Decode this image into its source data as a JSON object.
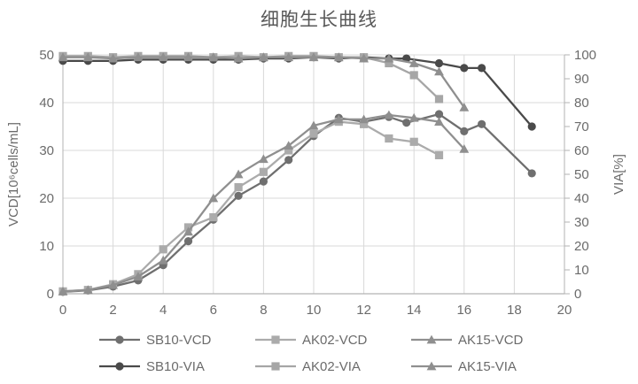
{
  "title": "细胞生长曲线",
  "colors": {
    "title_text": "#595959",
    "tick_text": "#6b6b6b",
    "gridline": "#d9d9d9",
    "axis_line": "#b3b3b3",
    "background": "#ffffff"
  },
  "axes": {
    "x": {
      "min": 0,
      "max": 20,
      "tick_step": 2,
      "ticks": [
        0,
        2,
        4,
        6,
        8,
        10,
        12,
        14,
        16,
        18,
        20
      ]
    },
    "y_left": {
      "label": "VCD[10⁶cells/mL]",
      "min": 0,
      "max": 50,
      "tick_step": 10,
      "ticks": [
        0,
        10,
        20,
        30,
        40,
        50
      ]
    },
    "y_right": {
      "label": "VIA[%]",
      "min": 0,
      "max": 100,
      "tick_step": 10,
      "ticks": [
        0,
        10,
        20,
        30,
        40,
        50,
        60,
        70,
        80,
        90,
        100
      ]
    }
  },
  "chart_data": {
    "type": "line",
    "title": "细胞生长曲线",
    "xlabel": "",
    "ylabel_left": "VCD[10⁶cells/mL]",
    "ylabel_right": "VIA[%]",
    "x_range": [
      0,
      20
    ],
    "y_left_range": [
      0,
      50
    ],
    "y_right_range": [
      0,
      100
    ],
    "grid": true,
    "legend_position": "bottom",
    "series": [
      {
        "name": "SB10-VCD",
        "axis": "left",
        "marker": "circle",
        "color": "#6f6f6f",
        "x": [
          0,
          1,
          2,
          3,
          4,
          5,
          6,
          7,
          8,
          9,
          10,
          11,
          12,
          13,
          13.7,
          15,
          16,
          16.7,
          18.7
        ],
        "y": [
          0.4,
          0.7,
          1.5,
          2.8,
          6,
          11,
          15.5,
          20.5,
          23.5,
          28,
          33,
          36.8,
          36,
          37,
          35.8,
          37.6,
          34,
          35.5,
          25.2
        ]
      },
      {
        "name": "AK02-VCD",
        "axis": "left",
        "marker": "square",
        "color": "#ababab",
        "x": [
          0,
          1,
          2,
          3,
          4,
          5,
          6,
          7,
          8,
          9,
          10,
          11,
          12,
          13,
          14,
          15
        ],
        "y": [
          0.5,
          0.8,
          2,
          4.1,
          9.3,
          13.9,
          16,
          22.3,
          25.5,
          30,
          33.5,
          36,
          35.5,
          32.5,
          31.8,
          29
        ]
      },
      {
        "name": "AK15-VCD",
        "axis": "left",
        "marker": "triangle",
        "color": "#8f8f8f",
        "x": [
          0,
          1,
          2,
          3,
          4,
          5,
          6,
          7,
          8,
          9,
          10,
          11,
          12,
          13,
          14,
          15,
          16
        ],
        "y": [
          0.5,
          0.8,
          1.8,
          3.6,
          7,
          13,
          20,
          25,
          28.2,
          31,
          35.2,
          36.5,
          36.5,
          37.4,
          36.8,
          36,
          30.3
        ]
      },
      {
        "name": "SB10-VIA",
        "axis": "right",
        "marker": "circle",
        "color": "#4a4a4a",
        "x": [
          0,
          1,
          2,
          3,
          4,
          5,
          6,
          7,
          8,
          9,
          10,
          11,
          12,
          13,
          13.7,
          15,
          16,
          16.7,
          18.7
        ],
        "y": [
          97.5,
          97.5,
          97.5,
          98,
          98,
          98,
          98,
          98,
          98.5,
          98.5,
          99,
          98.5,
          99,
          98.5,
          98.5,
          96.5,
          94.5,
          94.5,
          70
        ]
      },
      {
        "name": "AK02-VIA",
        "axis": "right",
        "marker": "square",
        "color": "#a6a6a6",
        "x": [
          0,
          1,
          2,
          3,
          4,
          5,
          6,
          7,
          8,
          9,
          10,
          11,
          12,
          13,
          14,
          15
        ],
        "y": [
          99.5,
          99.5,
          99,
          99.5,
          99.5,
          99.5,
          99,
          99.5,
          99,
          99.5,
          99.5,
          99,
          99,
          96.5,
          91.5,
          81.5
        ]
      },
      {
        "name": "AK15-VIA",
        "axis": "right",
        "marker": "triangle",
        "color": "#8f8f8f",
        "x": [
          0,
          1,
          2,
          3,
          4,
          5,
          6,
          7,
          8,
          9,
          10,
          11,
          12,
          13,
          14,
          15,
          16
        ],
        "y": [
          99,
          99,
          98.5,
          99,
          99,
          99,
          99,
          98.5,
          99,
          99,
          99,
          99,
          98.5,
          98.5,
          96.5,
          93,
          78
        ]
      }
    ]
  }
}
